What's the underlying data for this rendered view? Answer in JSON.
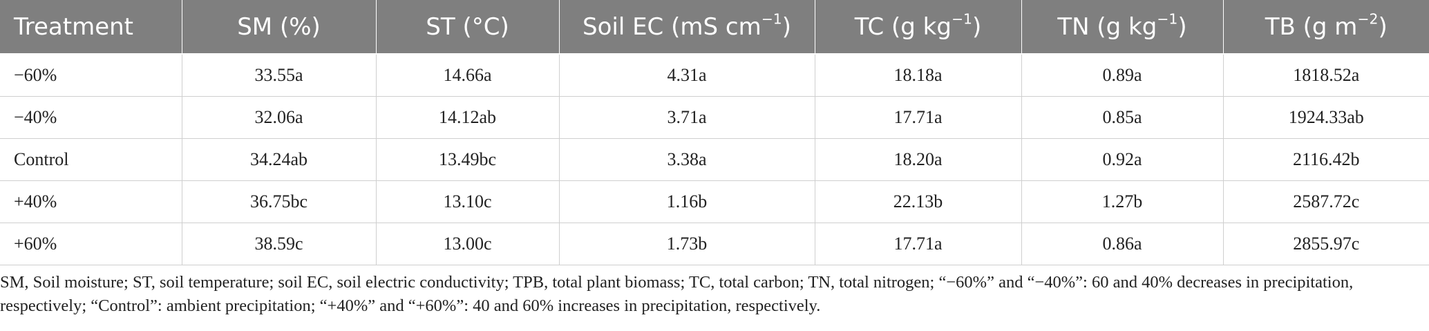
{
  "table": {
    "headers": [
      {
        "text": "Treatment",
        "sup": ""
      },
      {
        "text": "SM (%)",
        "sup": ""
      },
      {
        "text": "ST (°C)",
        "sup": ""
      },
      {
        "text": "Soil EC (mS cm",
        "sup": "−1",
        "close": ")"
      },
      {
        "text": "TC (g kg",
        "sup": "−1",
        "close": ")"
      },
      {
        "text": "TN (g kg",
        "sup": "−1",
        "close": ")"
      },
      {
        "text": "TB (g m",
        "sup": "−2",
        "close": ")"
      }
    ],
    "rows": [
      [
        "−60%",
        "33.55a",
        "14.66a",
        "4.31a",
        "18.18a",
        "0.89a",
        "1818.52a"
      ],
      [
        "−40%",
        "32.06a",
        "14.12ab",
        "3.71a",
        "17.71a",
        "0.85a",
        "1924.33ab"
      ],
      [
        "Control",
        "34.24ab",
        "13.49bc",
        "3.38a",
        "18.20a",
        "0.92a",
        "2116.42b"
      ],
      [
        "+40%",
        "36.75bc",
        "13.10c",
        "1.16b",
        "22.13b",
        "1.27b",
        "2587.72c"
      ],
      [
        "+60%",
        "38.59c",
        "13.00c",
        "1.73b",
        "17.71a",
        "0.86a",
        "2855.97c"
      ]
    ]
  },
  "footnote": "SM, Soil moisture; ST, soil temperature; soil EC, soil electric conductivity; TPB, total plant biomass; TC, total carbon; TN, total nitrogen; “−60%” and “−40%”: 60 and 40% decreases in precipitation, respectively; “Control”: ambient precipitation; “+40%” and “+60%”: 40 and 60% increases in precipitation, respectively.",
  "colors": {
    "header_bg": "#7f7f7f",
    "header_text": "#ffffff",
    "grid": "#cfcfcf"
  }
}
